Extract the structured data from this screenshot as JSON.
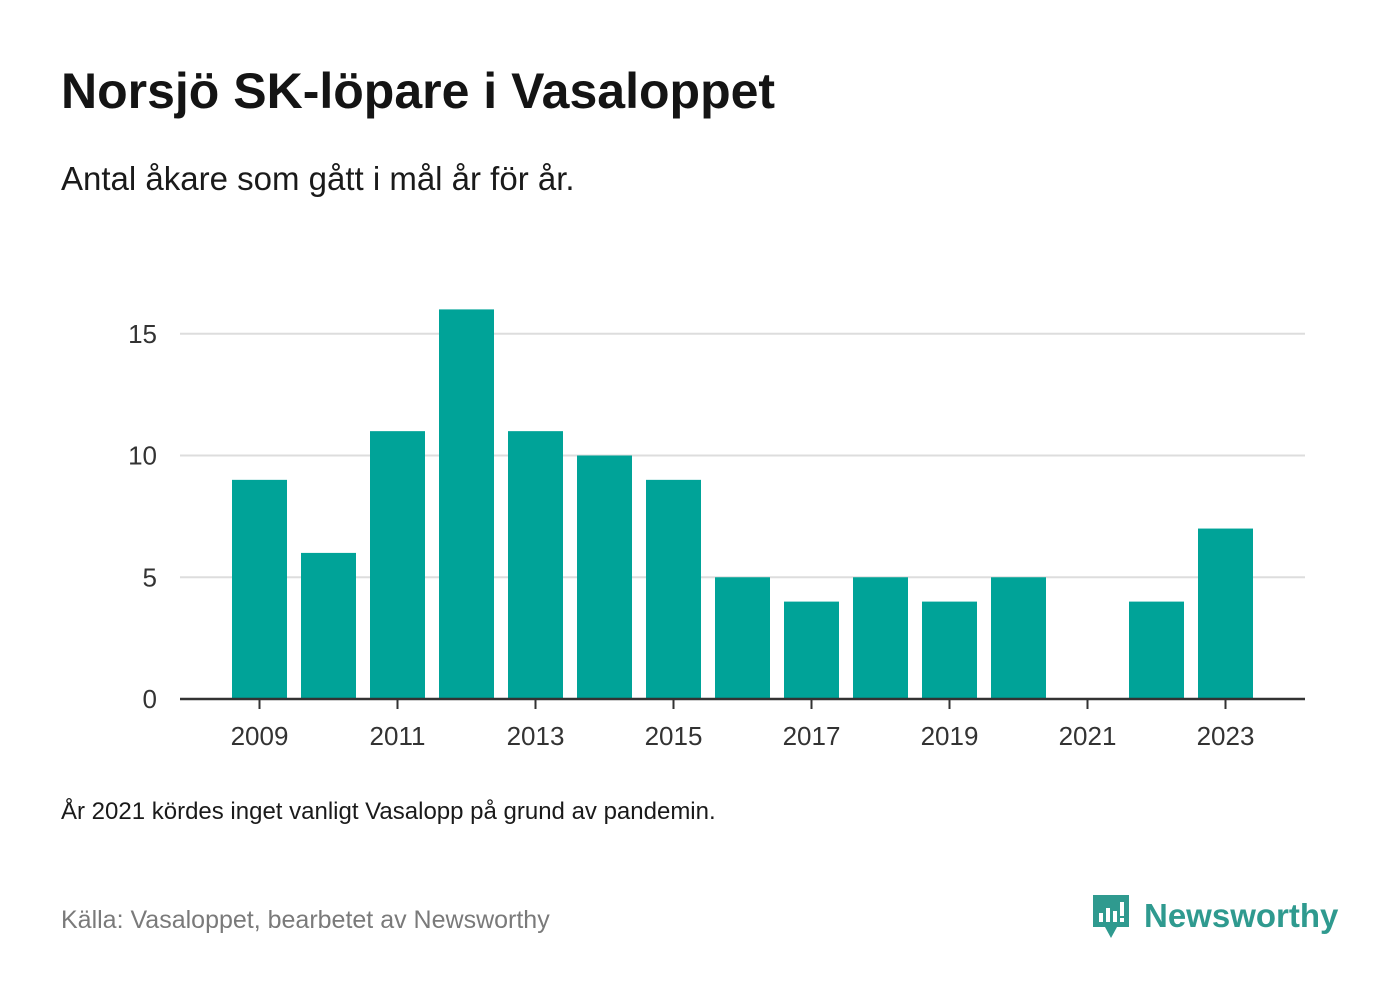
{
  "header": {
    "title": "Norsjö SK-löpare i Vasaloppet",
    "subtitle": "Antal åkare som gått i mål år för år."
  },
  "footer": {
    "note": "År 2021 kördes inget vanligt Vasalopp på grund av pandemin.",
    "source": "Källa: Vasaloppet, bearbetet av Newsworthy",
    "brand_name": "Newsworthy",
    "brand_icon": "newsworthy-logo-icon"
  },
  "colors": {
    "bar": "#00a398",
    "grid": "#dddddd",
    "axis": "#333333",
    "brand": "#2f9a8f"
  },
  "chart_data": {
    "type": "bar",
    "categories": [
      "2009",
      "2010",
      "2011",
      "2012",
      "2013",
      "2014",
      "2015",
      "2016",
      "2017",
      "2018",
      "2019",
      "2020",
      "2021",
      "2022",
      "2023"
    ],
    "values": [
      9,
      6,
      11,
      16,
      11,
      10,
      9,
      5,
      4,
      5,
      4,
      5,
      0,
      4,
      7
    ],
    "x_tick_labels": [
      "2009",
      "2011",
      "2013",
      "2015",
      "2017",
      "2019",
      "2021",
      "2023"
    ],
    "y_ticks": [
      0,
      5,
      10,
      15
    ],
    "ylim": [
      0,
      16
    ],
    "grid": true,
    "legend": "none",
    "xlabel": "",
    "ylabel": ""
  }
}
